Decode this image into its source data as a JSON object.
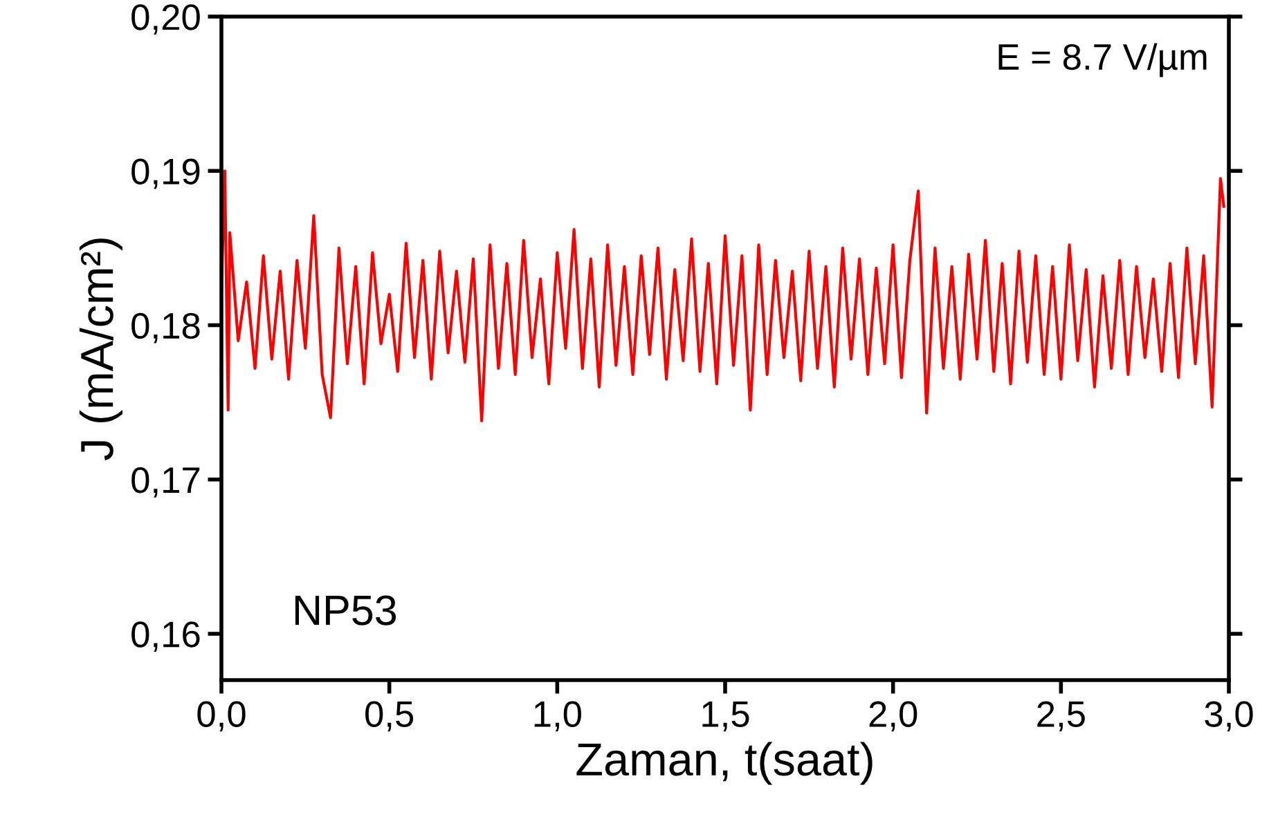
{
  "chart_data": {
    "type": "line",
    "xlabel": "Zaman, t(saat)",
    "ylabel": "J (mA/cm²)",
    "annotations": [
      "E = 8.7 V/µm",
      "NP53"
    ],
    "x": [
      0,
      0.01,
      0.02,
      0.025,
      0.05,
      0.075,
      0.1,
      0.125,
      0.15,
      0.175,
      0.2,
      0.225,
      0.25,
      0.275,
      0.3,
      0.325,
      0.35,
      0.375,
      0.4,
      0.425,
      0.45,
      0.475,
      0.5,
      0.525,
      0.55,
      0.575,
      0.6,
      0.625,
      0.65,
      0.675,
      0.7,
      0.725,
      0.75,
      0.775,
      0.8,
      0.825,
      0.85,
      0.875,
      0.9,
      0.925,
      0.95,
      0.975,
      1.0,
      1.025,
      1.05,
      1.075,
      1.1,
      1.125,
      1.15,
      1.175,
      1.2,
      1.225,
      1.25,
      1.275,
      1.3,
      1.325,
      1.35,
      1.375,
      1.4,
      1.425,
      1.45,
      1.475,
      1.5,
      1.525,
      1.55,
      1.575,
      1.6,
      1.625,
      1.65,
      1.675,
      1.7,
      1.725,
      1.75,
      1.775,
      1.8,
      1.825,
      1.85,
      1.875,
      1.9,
      1.925,
      1.95,
      1.975,
      2.0,
      2.025,
      2.05,
      2.075,
      2.1,
      2.125,
      2.15,
      2.175,
      2.2,
      2.225,
      2.25,
      2.275,
      2.3,
      2.325,
      2.35,
      2.375,
      2.4,
      2.425,
      2.45,
      2.475,
      2.5,
      2.525,
      2.55,
      2.575,
      2.6,
      2.625,
      2.65,
      2.675,
      2.7,
      2.725,
      2.75,
      2.775,
      2.8,
      2.825,
      2.85,
      2.875,
      2.9,
      2.925,
      2.95,
      2.975,
      2.985
    ],
    "series": [
      {
        "color": "#ff0000",
        "values": [
          0.1822,
          0.19,
          0.1745,
          0.186,
          0.179,
          0.1828,
          0.1772,
          0.1845,
          0.1778,
          0.1835,
          0.1765,
          0.1842,
          0.1785,
          0.1871,
          0.1768,
          0.174,
          0.185,
          0.1775,
          0.1838,
          0.1762,
          0.1847,
          0.1788,
          0.182,
          0.177,
          0.1853,
          0.1779,
          0.1842,
          0.1765,
          0.1848,
          0.1782,
          0.1835,
          0.1776,
          0.1843,
          0.1738,
          0.1852,
          0.1772,
          0.184,
          0.1768,
          0.1855,
          0.1779,
          0.183,
          0.1762,
          0.1847,
          0.1785,
          0.1862,
          0.1772,
          0.1843,
          0.176,
          0.1852,
          0.1774,
          0.1838,
          0.1768,
          0.1845,
          0.1781,
          0.185,
          0.1765,
          0.1836,
          0.1777,
          0.1856,
          0.177,
          0.184,
          0.1762,
          0.1858,
          0.1774,
          0.1845,
          0.1745,
          0.1852,
          0.1768,
          0.1842,
          0.1779,
          0.1835,
          0.1764,
          0.1848,
          0.1772,
          0.1838,
          0.176,
          0.185,
          0.1778,
          0.1843,
          0.1768,
          0.1837,
          0.1775,
          0.1852,
          0.1766,
          0.1842,
          0.1887,
          0.1743,
          0.185,
          0.1772,
          0.1838,
          0.1765,
          0.1846,
          0.1778,
          0.1855,
          0.177,
          0.184,
          0.1762,
          0.1848,
          0.1776,
          0.1845,
          0.1768,
          0.1838,
          0.1765,
          0.1852,
          0.1777,
          0.1836,
          0.176,
          0.1832,
          0.1772,
          0.1842,
          0.1768,
          0.1838,
          0.1779,
          0.183,
          0.177,
          0.184,
          0.1766,
          0.185,
          0.1775,
          0.1845,
          0.1747,
          0.1895,
          0.1877
        ]
      }
    ],
    "xlim": [
      0,
      3
    ],
    "ylim": [
      0.157,
      0.2
    ],
    "xticks": [
      {
        "value": 0,
        "label": "0,0"
      },
      {
        "value": 0.5,
        "label": "0,5"
      },
      {
        "value": 1,
        "label": "1,0"
      },
      {
        "value": 1.5,
        "label": "1,5"
      },
      {
        "value": 2,
        "label": "2,0"
      },
      {
        "value": 2.5,
        "label": "2,5"
      },
      {
        "value": 3,
        "label": "3,0"
      }
    ],
    "yticks": [
      {
        "value": 0.16,
        "label": "0,16"
      },
      {
        "value": 0.17,
        "label": "0,17"
      },
      {
        "value": 0.18,
        "label": "0,18"
      },
      {
        "value": 0.19,
        "label": "0,19"
      },
      {
        "value": 0.2,
        "label": "0,20"
      }
    ],
    "grid": false,
    "legend": false,
    "marker": "none",
    "line_style": "solid"
  }
}
